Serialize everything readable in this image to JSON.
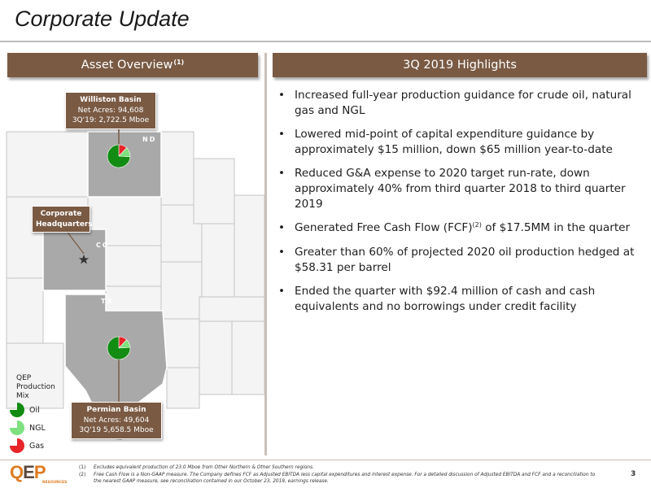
{
  "title": "Corporate Update",
  "left_panel": {
    "header": "Asset Overview",
    "header_note": "(1)",
    "williston": {
      "name": "Williston Basin",
      "acres": "Net Acres: 94,608",
      "production": "3Q'19: 2,722.5 Mboe"
    },
    "hq": {
      "line1": "Corporate",
      "line2": "Headquarters"
    },
    "permian": {
      "name": "Permian Basin",
      "acres": "Net Acres: 49,604",
      "production": "3Q'19 5,658.5 Mboe"
    },
    "state_labels": {
      "nd": "ND",
      "co": "CO",
      "tx": "TX"
    },
    "mix": {
      "title_lines": [
        "QEP",
        "Production",
        "Mix"
      ],
      "items": [
        {
          "label": "Oil",
          "color": "#128c12"
        },
        {
          "label": "NGL",
          "color": "#7fe07f"
        },
        {
          "label": "Gas",
          "color": "#e8242b"
        }
      ]
    }
  },
  "right_panel": {
    "header": "3Q 2019 Highlights",
    "bullets": [
      {
        "text": "Increased full-year production guidance for crude oil, natural gas and NGL"
      },
      {
        "text": "Lowered mid-point of capital expenditure guidance by approximately $15 million, down $65 million year-to-date"
      },
      {
        "text": "Reduced G&A expense to 2020 target run-rate, down approximately 40% from third quarter 2018 to third quarter 2019"
      },
      {
        "pre": "Generated Free Cash Flow (FCF)",
        "sup": "(2)",
        "post": " of $17.5MM in the quarter"
      },
      {
        "text": "Greater than 60% of projected 2020 oil production hedged at $58.31 per barrel"
      },
      {
        "text": "Ended the quarter with $92.4 million of cash and cash equivalents and no borrowings under credit facility"
      }
    ]
  },
  "footnotes": [
    {
      "num": "(1)",
      "text": "Excludes equivalent production of 23.0 Mboe from Other Northern & Other Southern regions."
    },
    {
      "num": "(2)",
      "text": "Free Cash Flow is a Non-GAAP measure. The Company defines FCF as Adjusted EBITDA less capital expenditures and interest expense. For a detailed discussion of Adjusted EBITDA and FCF and a reconciliation to the nearest GAAP measure, see reconciliation contained in our October 23, 2019, earnings release."
    }
  ],
  "logo": {
    "brand_q": "Q",
    "brand_e": "E",
    "brand_p": "P",
    "sub": "RESOURCES"
  },
  "page_number": "3",
  "colors": {
    "header_brown": "#7a5a43",
    "oil": "#128c12",
    "ngl": "#7fe07f",
    "gas": "#e8242b",
    "state_highlight": "#a9a9a9"
  },
  "pies": {
    "williston": {
      "oil": 0.74,
      "ngl": 0.14,
      "gas": 0.12
    },
    "permian": {
      "oil": 0.76,
      "ngl": 0.12,
      "gas": 0.12
    }
  }
}
